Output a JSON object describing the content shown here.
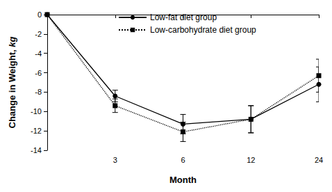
{
  "chart_data": {
    "type": "line",
    "x_label": "Month",
    "y_label": "Change in Weight, kg",
    "categories": [
      null,
      "3",
      "6",
      "12",
      "24"
    ],
    "series": [
      {
        "name": "Low-fat diet group",
        "color": "#000000",
        "marker": "circle",
        "line_style": "solid",
        "values": [
          0,
          -8.4,
          -11.3,
          -10.8,
          -7.2
        ],
        "errors": [
          null,
          0.6,
          1.0,
          1.4,
          1.8
        ]
      },
      {
        "name": "Low-carbohydrate diet group",
        "color": "#000000",
        "marker": "square",
        "line_style": "dotted",
        "values": [
          0,
          -9.4,
          -12.1,
          -10.8,
          -6.3
        ],
        "errors": [
          null,
          0.7,
          1.0,
          1.4,
          1.7
        ]
      }
    ],
    "ylim": [
      -14,
      0
    ],
    "yticks": [
      -14,
      -12,
      -10,
      -8,
      -6,
      -4,
      -2,
      0
    ],
    "grid": false,
    "legend": "upper right"
  }
}
